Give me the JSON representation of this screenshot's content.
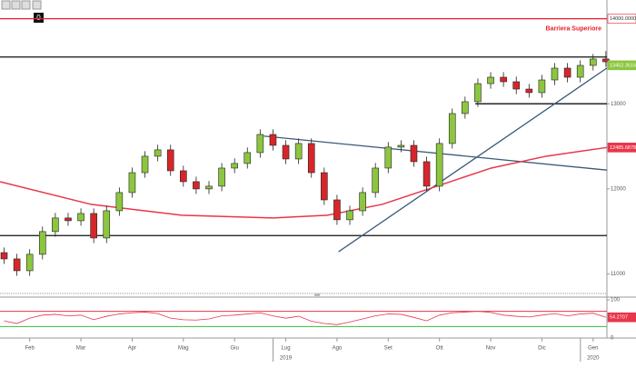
{
  "toolbar_label": "0",
  "chart_data": [
    {
      "type": "candlestick",
      "x": [
        0.5,
        0.75,
        1,
        1.25,
        1.5,
        1.75,
        2,
        2.25,
        2.5,
        2.75,
        3,
        3.25,
        3.5,
        3.75,
        4,
        4.25,
        4.5,
        4.75,
        5,
        5.25,
        5.5,
        5.75,
        6,
        6.25,
        6.5,
        6.75,
        7,
        7.25,
        7.5,
        7.75,
        8,
        8.25,
        8.5,
        8.75,
        9,
        9.25,
        9.5,
        9.75,
        10,
        10.25,
        10.5,
        10.75,
        11,
        11.25,
        11.5,
        11.75,
        12,
        12.25
      ],
      "open": [
        11250,
        11176,
        11037,
        11230,
        11497,
        11657,
        11625,
        11710,
        11422,
        11742,
        11956,
        12190,
        12383,
        12458,
        12212,
        12084,
        11999,
        12031,
        12244,
        12298,
        12426,
        12639,
        12511,
        12351,
        12533,
        12190,
        11870,
        11636,
        11742,
        11956,
        12244,
        12490,
        12511,
        12319,
        12031,
        12533,
        12885,
        13024,
        13237,
        13312,
        13259,
        13173,
        13131,
        13280,
        13419,
        13312,
        13451,
        13526
      ],
      "high": [
        11310,
        11236,
        11290,
        11557,
        11717,
        11717,
        11770,
        11770,
        11802,
        12016,
        12250,
        12443,
        12518,
        12518,
        12272,
        12144,
        12091,
        12304,
        12358,
        12486,
        12699,
        12699,
        12571,
        12593,
        12593,
        12250,
        11930,
        11802,
        12016,
        12304,
        12550,
        12571,
        12571,
        12379,
        12593,
        12945,
        13084,
        13297,
        13372,
        13372,
        13319,
        13233,
        13340,
        13479,
        13479,
        13511,
        13586,
        13620
      ],
      "low": [
        11116,
        10977,
        10977,
        11170,
        11437,
        11565,
        11565,
        11362,
        11362,
        11682,
        11896,
        12130,
        12323,
        12152,
        12024,
        11939,
        11939,
        11971,
        12184,
        12238,
        12366,
        12451,
        12291,
        12291,
        12130,
        11810,
        11576,
        11576,
        11682,
        11896,
        12184,
        12430,
        12259,
        11971,
        11971,
        12473,
        12825,
        12964,
        13177,
        13199,
        13113,
        13071,
        13071,
        13220,
        13252,
        13252,
        13391,
        13434
      ],
      "close": [
        11176,
        11037,
        11230,
        11497,
        11657,
        11625,
        11710,
        11422,
        11742,
        11956,
        12190,
        12383,
        12458,
        12212,
        12084,
        11999,
        12031,
        12244,
        12298,
        12426,
        12639,
        12511,
        12351,
        12533,
        12190,
        11870,
        11636,
        11742,
        11956,
        12244,
        12490,
        12511,
        12319,
        12031,
        12533,
        12885,
        13024,
        13237,
        13312,
        13259,
        13173,
        13131,
        13280,
        13419,
        13312,
        13451,
        13526,
        13494
      ],
      "up_color": "#8cc63f",
      "down_color": "#d7262b",
      "xlim": [
        0.42,
        12.27
      ],
      "ylim": [
        10780,
        14220
      ],
      "yticks": [
        11000,
        12000,
        13000
      ],
      "xticks": [
        {
          "value": 1,
          "label": "Feb"
        },
        {
          "value": 2,
          "label": "Mar"
        },
        {
          "value": 3,
          "label": "Apr"
        },
        {
          "value": 4,
          "label": "Mag"
        },
        {
          "value": 5,
          "label": "Giu"
        },
        {
          "value": 6,
          "label": "Lug"
        },
        {
          "value": 7,
          "label": "Ago"
        },
        {
          "value": 8,
          "label": "Set"
        },
        {
          "value": 9,
          "label": "Ott"
        },
        {
          "value": 10,
          "label": "Nov"
        },
        {
          "value": 11,
          "label": "Dic"
        },
        {
          "value": 12,
          "label": "Gen"
        }
      ],
      "year_labels": [
        {
          "value": 6,
          "label": "2019"
        },
        {
          "value": 12,
          "label": "2020"
        }
      ],
      "levels": [
        {
          "value": 14000,
          "color": "#e8202a"
        },
        {
          "value": 13550,
          "color": "#111111"
        },
        {
          "value": 13000,
          "color": "#111111",
          "start": 9.7
        },
        {
          "value": 11450,
          "color": "#111111"
        }
      ],
      "annotation": "Barriera Superiore",
      "trendlines": [
        {
          "x": [
            5.57,
            12.27
          ],
          "y": [
            12620,
            12220
          ],
          "color": "#3b5a78"
        },
        {
          "x": [
            7.03,
            12.27
          ],
          "y": [
            11260,
            13420
          ],
          "color": "#3b5a78"
        }
      ],
      "ma": {
        "color": "#e8364a",
        "x": [
          0.42,
          2.2,
          3.97,
          5.75,
          6.81,
          7.88,
          8.95,
          10.01,
          11.08,
          12.27
        ],
        "y": [
          12084,
          11817,
          11689,
          11657,
          11689,
          11817,
          12031,
          12244,
          12383,
          12486
        ]
      },
      "price_tags": [
        {
          "value": 14000,
          "label": "14000.0000",
          "color": "#ffffff"
        },
        {
          "value": 13452.3516,
          "color": "#8cc63f"
        },
        {
          "value": 12485.6878,
          "color": "#e8364a"
        }
      ]
    },
    {
      "type": "line",
      "color": "#e8364a",
      "x": [
        0.5,
        0.75,
        1,
        1.25,
        1.5,
        1.75,
        2,
        2.25,
        2.5,
        2.75,
        3,
        3.25,
        3.5,
        3.75,
        4,
        4.25,
        4.5,
        4.75,
        5,
        5.25,
        5.5,
        5.75,
        6,
        6.25,
        6.5,
        6.75,
        7,
        7.25,
        7.5,
        7.75,
        8,
        8.25,
        8.5,
        8.75,
        9,
        9.25,
        9.5,
        9.75,
        10,
        10.25,
        10.5,
        10.75,
        11,
        11.25,
        11.5,
        11.75,
        12,
        12.25
      ],
      "values": [
        45,
        38,
        52,
        60,
        62,
        58,
        60,
        48,
        57,
        63,
        66,
        68,
        64,
        52,
        48,
        47,
        50,
        58,
        60,
        63,
        66,
        58,
        52,
        57,
        44,
        38,
        35,
        42,
        50,
        58,
        63,
        62,
        54,
        45,
        60,
        66,
        68,
        70,
        67,
        60,
        57,
        55,
        60,
        64,
        58,
        63,
        65,
        54.2707
      ],
      "ylim": [
        0,
        100
      ],
      "yticks": [
        0,
        100
      ],
      "levels": [
        {
          "value": 70,
          "color": "#e8364a"
        },
        {
          "value": 30,
          "color": "#3cb83c"
        }
      ],
      "price_tags": [
        {
          "value": 54.2707,
          "color": "#e8364a"
        }
      ]
    }
  ]
}
